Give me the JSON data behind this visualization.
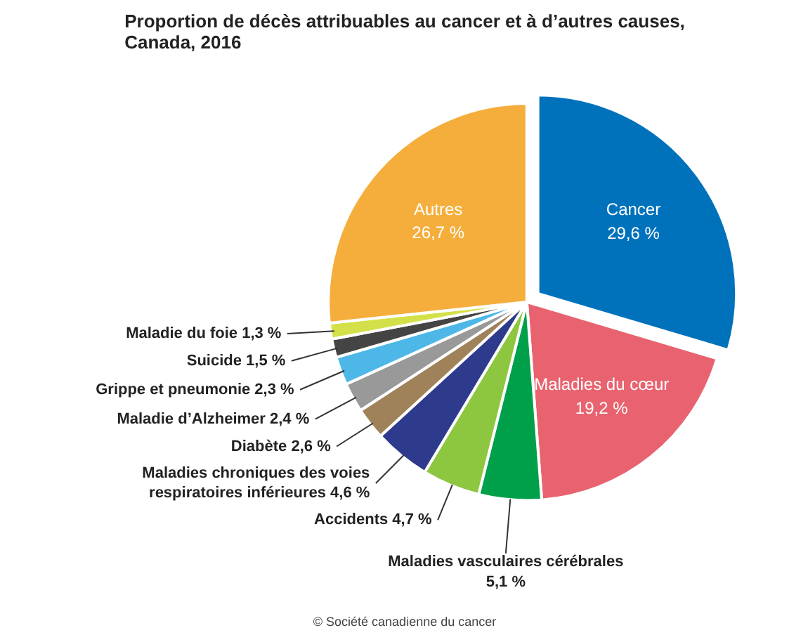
{
  "chart_data": {
    "type": "pie",
    "title": "Proportion de décès attribuables au cancer et à d’autres causes,\nCanada, 2016",
    "categories": [
      "Cancer",
      "Maladies du cœur",
      "Maladies vasculaires cérébrales",
      "Accidents",
      "Maladies chroniques des voies respiratoires inférieures",
      "Diabète",
      "Maladie d’Alzheimer",
      "Grippe et pneumonie",
      "Suicide",
      "Maladie du foie",
      "Autres"
    ],
    "values": [
      29.6,
      19.2,
      5.1,
      4.7,
      4.6,
      2.6,
      2.4,
      2.3,
      1.5,
      1.3,
      26.7
    ],
    "value_labels": [
      "29,6 %",
      "19,2 %",
      "5,1 %",
      "4,7 %",
      "4,6 %",
      "2,6 %",
      "2,4 %",
      "2,3 %",
      "1,5 %",
      "1,3 %",
      "26,7 %"
    ],
    "colors": [
      "#0072bc",
      "#e8636f",
      "#00a04a",
      "#8dc63f",
      "#2e3a8c",
      "#a0825a",
      "#999999",
      "#4db8e8",
      "#444444",
      "#d4e04a",
      "#f5ae3c"
    ],
    "annotations": [
      "© Société canadienne du cancer"
    ]
  }
}
